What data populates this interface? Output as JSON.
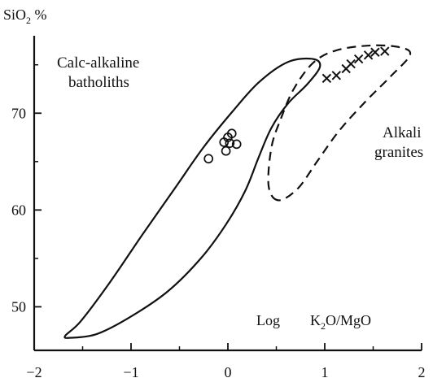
{
  "chart_data": {
    "type": "scatter",
    "title": "",
    "ylabel": {
      "main": "SiO",
      "sub": "2",
      "rest": " %"
    },
    "xlabel": {
      "prefix": "Log",
      "k": "K",
      "sub": "2",
      "rest": "O/MgO"
    },
    "xlim": [
      -2,
      2
    ],
    "ylim": [
      45.5,
      78
    ],
    "x_ticks": [
      -2,
      -1,
      0,
      1,
      2
    ],
    "x_tick_labels": [
      "−2",
      "−1",
      "0",
      "1",
      "2"
    ],
    "x_minor_ticks": [
      -1.5,
      -0.5,
      0.5,
      1.5
    ],
    "y_ticks": [
      50,
      60,
      70
    ],
    "y_tick_labels": [
      "50",
      "60",
      "70"
    ],
    "y_minor_ticks": [
      55,
      65,
      75
    ],
    "regions": [
      {
        "label_lines": [
          "Calc-alkaline",
          "batholiths"
        ],
        "style": "solid",
        "outline": [
          [
            -1.62,
            46.8
          ],
          [
            -1.35,
            47.2
          ],
          [
            -1.0,
            49.0
          ],
          [
            -0.62,
            51.6
          ],
          [
            -0.28,
            55.0
          ],
          [
            -0.02,
            58.5
          ],
          [
            0.18,
            62.0
          ],
          [
            0.32,
            65.5
          ],
          [
            0.45,
            68.5
          ],
          [
            0.62,
            71.0
          ],
          [
            0.82,
            73.0
          ],
          [
            0.95,
            74.8
          ],
          [
            0.88,
            75.6
          ],
          [
            0.62,
            75.3
          ],
          [
            0.32,
            73.2
          ],
          [
            0.05,
            70.2
          ],
          [
            -0.25,
            66.5
          ],
          [
            -0.55,
            62.2
          ],
          [
            -0.88,
            57.5
          ],
          [
            -1.22,
            52.5
          ],
          [
            -1.52,
            48.5
          ],
          [
            -1.68,
            47.0
          ]
        ]
      },
      {
        "label_lines": [
          "Alkali",
          "granites"
        ],
        "style": "dashed",
        "outline": [
          [
            0.52,
            61.0
          ],
          [
            0.42,
            62.5
          ],
          [
            0.45,
            66.5
          ],
          [
            0.55,
            69.5
          ],
          [
            0.68,
            72.5
          ],
          [
            0.88,
            75.2
          ],
          [
            1.12,
            76.5
          ],
          [
            1.48,
            77.0
          ],
          [
            1.78,
            76.8
          ],
          [
            1.88,
            76.0
          ],
          [
            1.68,
            73.8
          ],
          [
            1.42,
            71.2
          ],
          [
            1.15,
            68.2
          ],
          [
            0.92,
            65.0
          ],
          [
            0.72,
            62.2
          ]
        ]
      }
    ],
    "series": [
      {
        "marker": "circle",
        "points": [
          [
            -0.2,
            65.3
          ],
          [
            -0.02,
            66.1
          ],
          [
            -0.04,
            67.0
          ],
          [
            0.0,
            67.5
          ],
          [
            0.04,
            67.9
          ],
          [
            0.09,
            66.8
          ],
          [
            0.02,
            66.9
          ]
        ]
      },
      {
        "marker": "cross",
        "points": [
          [
            1.02,
            73.6
          ],
          [
            1.12,
            73.9
          ],
          [
            1.22,
            74.6
          ],
          [
            1.27,
            75.1
          ],
          [
            1.35,
            75.6
          ],
          [
            1.45,
            76.0
          ],
          [
            1.52,
            76.3
          ],
          [
            1.62,
            76.4
          ]
        ]
      }
    ]
  }
}
